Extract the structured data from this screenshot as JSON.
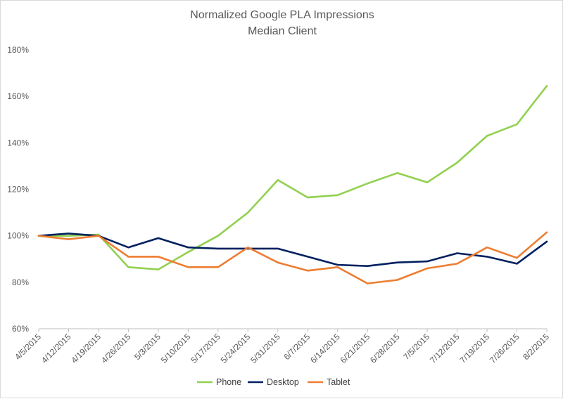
{
  "chart_data": {
    "type": "line",
    "title": "Normalized Google PLA Impressions",
    "subtitle": "Median Client",
    "xlabel": "",
    "ylabel": "",
    "categories": [
      "4/5/2015",
      "4/12/2015",
      "4/19/2015",
      "4/26/2015",
      "5/3/2015",
      "5/10/2015",
      "5/17/2015",
      "5/24/2015",
      "5/31/2015",
      "6/7/2015",
      "6/14/2015",
      "6/21/2015",
      "6/28/2015",
      "7/5/2015",
      "7/12/2015",
      "7/19/2015",
      "7/26/2015",
      "8/2/2015"
    ],
    "ylim": [
      60,
      180
    ],
    "y_ticks": [
      "60%",
      "80%",
      "100%",
      "120%",
      "140%",
      "160%",
      "180%"
    ],
    "y_tick_values": [
      60,
      80,
      100,
      120,
      140,
      160,
      180
    ],
    "grid": false,
    "legend_position": "bottom",
    "series": [
      {
        "name": "Phone",
        "color": "#92d050",
        "values": [
          100,
          100,
          100.5,
          86.5,
          85.5,
          93,
          100,
          110,
          124,
          116.5,
          117.5,
          122.5,
          127,
          123,
          131.5,
          143,
          148,
          164.5
        ]
      },
      {
        "name": "Desktop",
        "color": "#002060",
        "values": [
          100,
          101,
          100,
          95,
          99,
          95,
          94.5,
          94.5,
          94.5,
          91,
          87.5,
          87,
          88.5,
          89,
          92.5,
          91,
          88,
          97.5
        ]
      },
      {
        "name": "Tablet",
        "color": "#ed7d31",
        "values": [
          100,
          98.5,
          100,
          91,
          91,
          86.5,
          86.5,
          95,
          88.5,
          85,
          86.5,
          79.5,
          81,
          86,
          88,
          95,
          90.5,
          101.5
        ]
      }
    ]
  }
}
